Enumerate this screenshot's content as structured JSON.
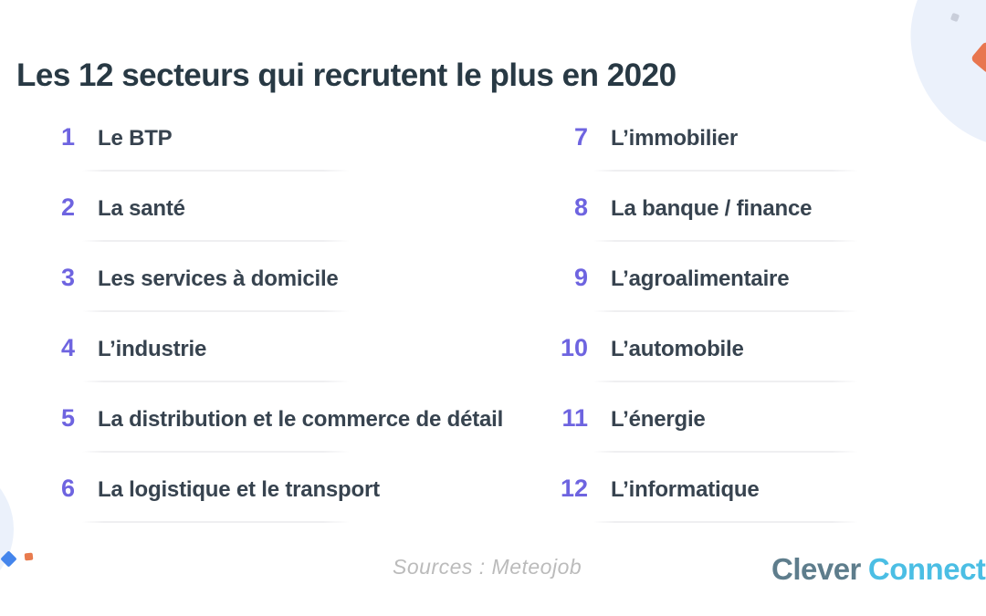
{
  "title": "Les 12 secteurs qui recrutent le plus en 2020",
  "sectors": [
    {
      "rank": "1",
      "label": "Le BTP"
    },
    {
      "rank": "2",
      "label": "La santé"
    },
    {
      "rank": "3",
      "label": "Les services à domicile"
    },
    {
      "rank": "4",
      "label": "L’industrie"
    },
    {
      "rank": "5",
      "label": "La distribution et le commerce de détail"
    },
    {
      "rank": "6",
      "label": "La logistique et le transport"
    },
    {
      "rank": "7",
      "label": "L’immobilier"
    },
    {
      "rank": "8",
      "label": "La banque / finance"
    },
    {
      "rank": "9",
      "label": "L’agroalimentaire"
    },
    {
      "rank": "10",
      "label": "L’automobile"
    },
    {
      "rank": "11",
      "label": "L’énergie"
    },
    {
      "rank": "12",
      "label": "L’informatique"
    }
  ],
  "footer": {
    "sources": "Sources : Meteojob",
    "logo": {
      "word1": "Clever",
      "word2": "Connect"
    }
  },
  "colors": {
    "accent_number": "#6E64E0",
    "title_text": "#283944",
    "item_text": "#37434F",
    "divider": "#EFEFF1",
    "sources_text": "#BBBBBB",
    "logo_clever": "#5E7D8C",
    "logo_connect": "#4BBEE4",
    "blob_blue": "#EBF1FB",
    "shape_orange": "#E8764F",
    "shape_blue_diamond": "#4485EC",
    "dot_gray": "#C9CEDA"
  }
}
